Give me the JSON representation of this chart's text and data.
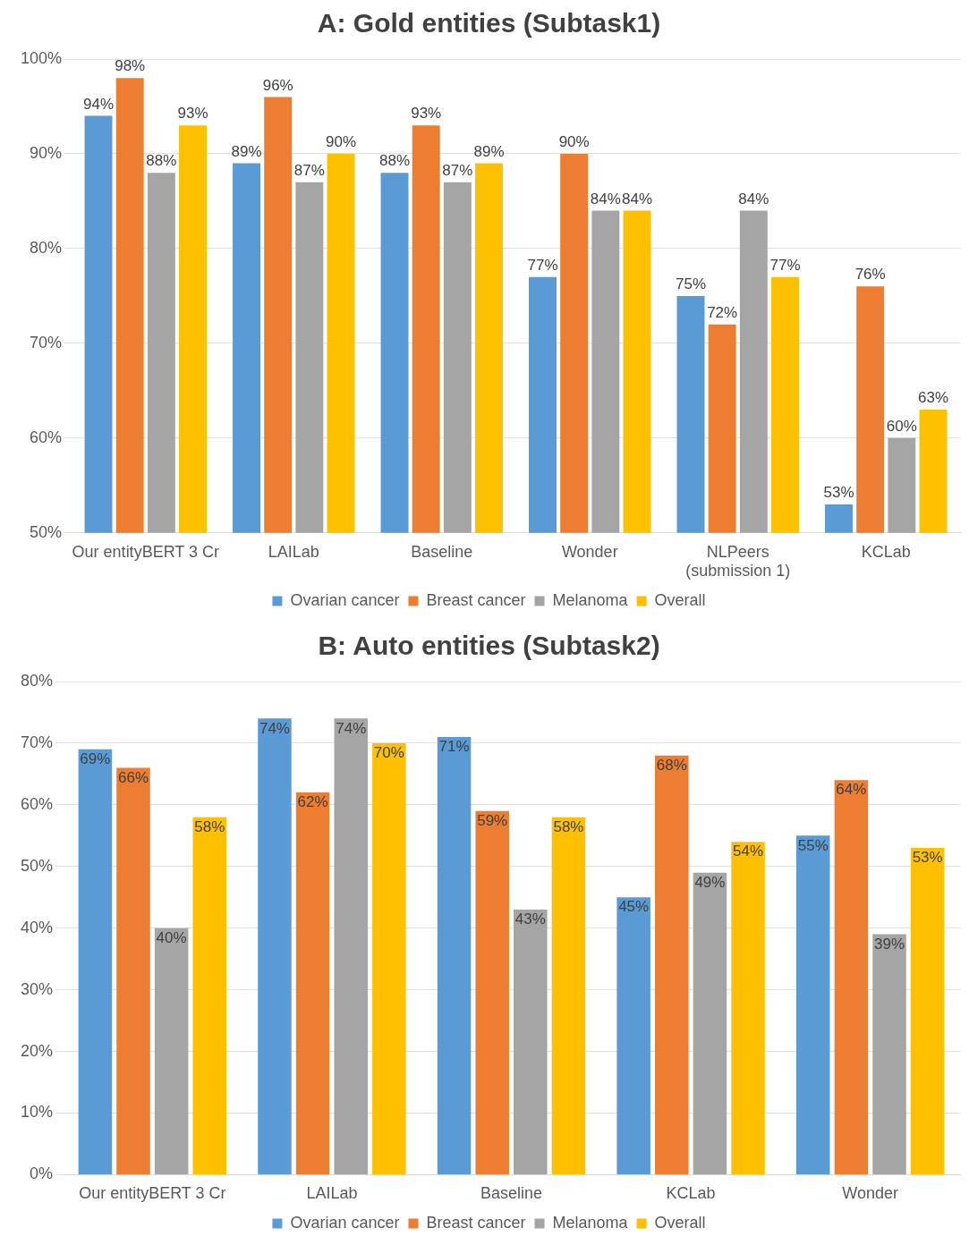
{
  "chart_data": [
    {
      "type": "bar",
      "title": "A: Gold entities (Subtask1)",
      "categories": [
        "Our entityBERT 3 Cr",
        "LAILab",
        "Baseline",
        "Wonder",
        "NLPeers (submission 1)",
        "KCLab"
      ],
      "series": [
        {
          "name": "Ovarian cancer",
          "color": "#5b9bd5",
          "values": [
            94,
            89,
            88,
            77,
            75,
            53
          ],
          "value_labels": [
            "94%",
            "89%",
            "88%",
            "77%",
            "75%",
            "53%"
          ]
        },
        {
          "name": "Breast cancer",
          "color": "#ed7d31",
          "values": [
            98,
            96,
            93,
            90,
            72,
            76
          ],
          "value_labels": [
            "98%",
            "96%",
            "93%",
            "90%",
            "72%",
            "76%"
          ]
        },
        {
          "name": "Melanoma",
          "color": "#a5a5a5",
          "values": [
            88,
            87,
            87,
            84,
            84,
            60
          ],
          "value_labels": [
            "88%",
            "87%",
            "87%",
            "84%",
            "84%",
            "60%"
          ]
        },
        {
          "name": "Overall",
          "color": "#ffc000",
          "values": [
            93,
            90,
            89,
            84,
            77,
            63
          ],
          "value_labels": [
            "93%",
            "90%",
            "89%",
            "84%",
            "77%",
            "63%"
          ]
        }
      ],
      "ylim": [
        50,
        100
      ],
      "yticks": [
        {
          "value": 50,
          "label": "50%"
        },
        {
          "value": 60,
          "label": "60%"
        },
        {
          "value": 70,
          "label": "70%"
        },
        {
          "value": 80,
          "label": "80%"
        },
        {
          "value": 90,
          "label": "90%"
        },
        {
          "value": 100,
          "label": "100%"
        }
      ],
      "grid": "y",
      "legend": "bottom"
    },
    {
      "type": "bar",
      "title": "B: Auto entities (Subtask2)",
      "categories": [
        "Our entityBERT 3 Cr",
        "LAILab",
        "Baseline",
        "KCLab",
        "Wonder"
      ],
      "series": [
        {
          "name": "Ovarian cancer",
          "color": "#5b9bd5",
          "values": [
            69,
            74,
            71,
            45,
            55
          ],
          "value_labels": [
            "69%",
            "74%",
            "71%",
            "45%",
            "55%"
          ]
        },
        {
          "name": "Breast cancer",
          "color": "#ed7d31",
          "values": [
            66,
            62,
            59,
            68,
            64
          ],
          "value_labels": [
            "66%",
            "62%",
            "59%",
            "68%",
            "64%"
          ]
        },
        {
          "name": "Melanoma",
          "color": "#a5a5a5",
          "values": [
            40,
            74,
            43,
            49,
            39
          ],
          "value_labels": [
            "40%",
            "74%",
            "43%",
            "49%",
            "39%"
          ]
        },
        {
          "name": "Overall",
          "color": "#ffc000",
          "values": [
            58,
            70,
            58,
            54,
            53
          ],
          "value_labels": [
            "58%",
            "70%",
            "58%",
            "54%",
            "53%"
          ]
        }
      ],
      "ylim": [
        0,
        80
      ],
      "yticks": [
        {
          "value": 0,
          "label": "0%"
        },
        {
          "value": 10,
          "label": "10%"
        },
        {
          "value": 20,
          "label": "20%"
        },
        {
          "value": 30,
          "label": "30%"
        },
        {
          "value": 40,
          "label": "40%"
        },
        {
          "value": 50,
          "label": "50%"
        },
        {
          "value": 60,
          "label": "60%"
        },
        {
          "value": 70,
          "label": "70%"
        },
        {
          "value": 80,
          "label": "80%"
        }
      ],
      "grid": "y",
      "legend": "bottom"
    }
  ]
}
